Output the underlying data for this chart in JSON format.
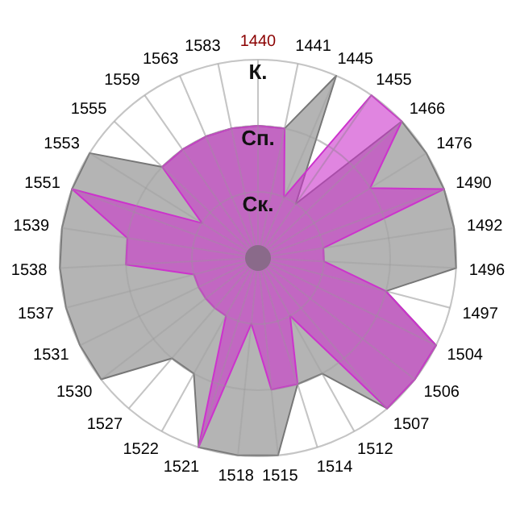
{
  "chart_data": {
    "type": "radar",
    "categories": [
      "1440",
      "1441",
      "1445",
      "1455",
      "1466",
      "1476",
      "1490",
      "1492",
      "1496",
      "1497",
      "1504",
      "1506",
      "1507",
      "1512",
      "1514",
      "1515",
      "1518",
      "1521",
      "1522",
      "1527",
      "1530",
      "1531",
      "1537",
      "1538",
      "1539",
      "1551",
      "1553",
      "1555",
      "1559",
      "1563",
      "1583"
    ],
    "series": [
      {
        "color": "#b4b4b4",
        "values": [
          2,
          2,
          3,
          1,
          3,
          3,
          3,
          3,
          3,
          2,
          3,
          3,
          3,
          2,
          2,
          3,
          3,
          3,
          2,
          2,
          3,
          3,
          3,
          3,
          3,
          3,
          3,
          2,
          2,
          2,
          2
        ]
      },
      {
        "color": "#cc33cc",
        "values": [
          2,
          2,
          1,
          3,
          3,
          2,
          3,
          1,
          1,
          2,
          3,
          3,
          3,
          1,
          2,
          2,
          1,
          3,
          1,
          1,
          1,
          1,
          1,
          2,
          2,
          3,
          1,
          2,
          2,
          2,
          2
        ]
      }
    ],
    "ylim": [
      0,
      3
    ],
    "yticks": [
      {
        "value": 1,
        "label": "Ск."
      },
      {
        "value": 2,
        "label": "Сп."
      },
      {
        "value": 3,
        "label": "К."
      }
    ],
    "grid": true
  }
}
